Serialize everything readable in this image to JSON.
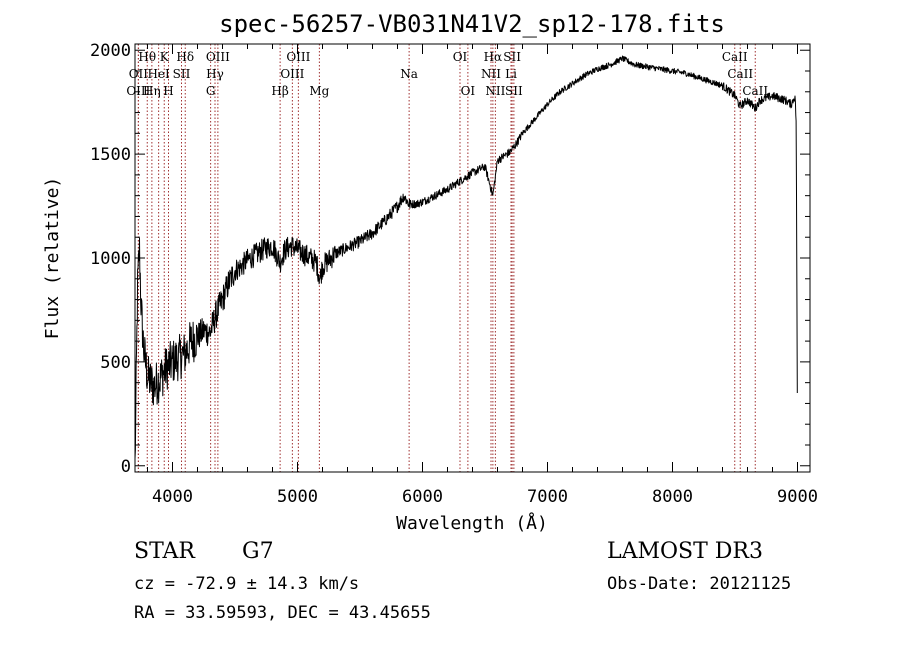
{
  "chart_data": {
    "type": "line",
    "title": "spec-56257-VB031N41V2_sp12-178.fits",
    "xlabel": "Wavelength (Å)",
    "ylabel": "Flux (relative)",
    "xlim": [
      3700,
      9100
    ],
    "ylim": [
      -30,
      2030
    ],
    "x_ticks": [
      4000,
      5000,
      6000,
      7000,
      8000,
      9000
    ],
    "y_ticks": [
      0,
      500,
      1000,
      1500,
      2000
    ],
    "x_tick_labels": [
      "4000",
      "5000",
      "6000",
      "7000",
      "8000",
      "9000"
    ],
    "y_tick_labels": [
      "0",
      "500",
      "1000",
      "1500",
      "2000"
    ],
    "spectrum_anchors": [
      [
        3700,
        0
      ],
      [
        3705,
        200
      ],
      [
        3720,
        850
      ],
      [
        3735,
        1050
      ],
      [
        3750,
        750
      ],
      [
        3770,
        560
      ],
      [
        3800,
        430
      ],
      [
        3850,
        380
      ],
      [
        3900,
        420
      ],
      [
        3950,
        470
      ],
      [
        4000,
        500
      ],
      [
        4050,
        520
      ],
      [
        4100,
        540
      ],
      [
        4150,
        600
      ],
      [
        4200,
        620
      ],
      [
        4250,
        650
      ],
      [
        4300,
        640
      ],
      [
        4350,
        730
      ],
      [
        4400,
        800
      ],
      [
        4450,
        880
      ],
      [
        4500,
        940
      ],
      [
        4550,
        960
      ],
      [
        4600,
        990
      ],
      [
        4650,
        1010
      ],
      [
        4700,
        1030
      ],
      [
        4750,
        1050
      ],
      [
        4800,
        1060
      ],
      [
        4860,
        980
      ],
      [
        4900,
        1040
      ],
      [
        4950,
        1060
      ],
      [
        5000,
        1040
      ],
      [
        5050,
        1020
      ],
      [
        5100,
        1000
      ],
      [
        5150,
        980
      ],
      [
        5180,
        900
      ],
      [
        5200,
        960
      ],
      [
        5300,
        1020
      ],
      [
        5400,
        1050
      ],
      [
        5500,
        1080
      ],
      [
        5600,
        1120
      ],
      [
        5700,
        1180
      ],
      [
        5800,
        1250
      ],
      [
        5850,
        1300
      ],
      [
        5890,
        1260
      ],
      [
        5950,
        1260
      ],
      [
        6000,
        1270
      ],
      [
        6100,
        1300
      ],
      [
        6200,
        1330
      ],
      [
        6300,
        1370
      ],
      [
        6400,
        1410
      ],
      [
        6500,
        1440
      ],
      [
        6563,
        1300
      ],
      [
        6600,
        1470
      ],
      [
        6650,
        1490
      ],
      [
        6700,
        1510
      ],
      [
        6750,
        1550
      ],
      [
        6800,
        1600
      ],
      [
        6900,
        1670
      ],
      [
        7000,
        1740
      ],
      [
        7100,
        1800
      ],
      [
        7200,
        1840
      ],
      [
        7300,
        1880
      ],
      [
        7400,
        1910
      ],
      [
        7500,
        1930
      ],
      [
        7600,
        1960
      ],
      [
        7700,
        1930
      ],
      [
        7800,
        1920
      ],
      [
        7900,
        1910
      ],
      [
        8000,
        1900
      ],
      [
        8100,
        1890
      ],
      [
        8200,
        1870
      ],
      [
        8300,
        1850
      ],
      [
        8400,
        1830
      ],
      [
        8500,
        1780
      ],
      [
        8540,
        1730
      ],
      [
        8600,
        1760
      ],
      [
        8662,
        1720
      ],
      [
        8700,
        1760
      ],
      [
        8800,
        1780
      ],
      [
        8900,
        1760
      ],
      [
        8950,
        1740
      ],
      [
        8980,
        1780
      ],
      [
        8990,
        1640
      ],
      [
        8998,
        350
      ]
    ],
    "spectral_lines": [
      {
        "label": "Hθ",
        "wavelength": 3798,
        "row": 0
      },
      {
        "label": "K",
        "wavelength": 3934,
        "row": 0
      },
      {
        "label": "Hδ",
        "wavelength": 4102,
        "row": 0
      },
      {
        "label": "OIII",
        "wavelength": 4363,
        "row": 0
      },
      {
        "label": "OIII",
        "wavelength": 5007,
        "row": 0
      },
      {
        "label": "OI",
        "wavelength": 6300,
        "row": 0
      },
      {
        "label": "Hα",
        "wavelength": 6563,
        "row": 0
      },
      {
        "label": "SII",
        "wavelength": 6717,
        "row": 0
      },
      {
        "label": "CaII",
        "wavelength": 8498,
        "row": 0
      },
      {
        "label": "OII",
        "wavelength": 3727,
        "row": 1
      },
      {
        "label": "HeI",
        "wavelength": 3889,
        "row": 1
      },
      {
        "label": "SII",
        "wavelength": 4072,
        "row": 1
      },
      {
        "label": "Hγ",
        "wavelength": 4340,
        "row": 1
      },
      {
        "label": "OIII",
        "wavelength": 4959,
        "row": 1
      },
      {
        "label": "Na",
        "wavelength": 5893,
        "row": 1
      },
      {
        "label": "NII",
        "wavelength": 6548,
        "row": 1
      },
      {
        "label": "Li",
        "wavelength": 6708,
        "row": 1
      },
      {
        "label": "CaII",
        "wavelength": 8542,
        "row": 1
      },
      {
        "label": "OIII",
        "wavelength": 3727,
        "row": 2
      },
      {
        "label": "Hη",
        "wavelength": 3835,
        "row": 2
      },
      {
        "label": "H",
        "wavelength": 3968,
        "row": 2
      },
      {
        "label": "G",
        "wavelength": 4305,
        "row": 2
      },
      {
        "label": "Hβ",
        "wavelength": 4861,
        "row": 2
      },
      {
        "label": "Mg",
        "wavelength": 5175,
        "row": 2
      },
      {
        "label": "OI",
        "wavelength": 6363,
        "row": 2
      },
      {
        "label": "NII",
        "wavelength": 6583,
        "row": 2
      },
      {
        "label": "SII",
        "wavelength": 6731,
        "row": 2
      },
      {
        "label": "CaII",
        "wavelength": 8662,
        "row": 2
      }
    ]
  },
  "info": {
    "object_class": "STAR",
    "subclass": "G7",
    "survey": "LAMOST DR3",
    "redshift": "cz = -72.9 ± 14.3 km/s",
    "obs_date": "Obs-Date: 20121125",
    "coords": "RA =  33.59593, DEC =  43.45655"
  }
}
